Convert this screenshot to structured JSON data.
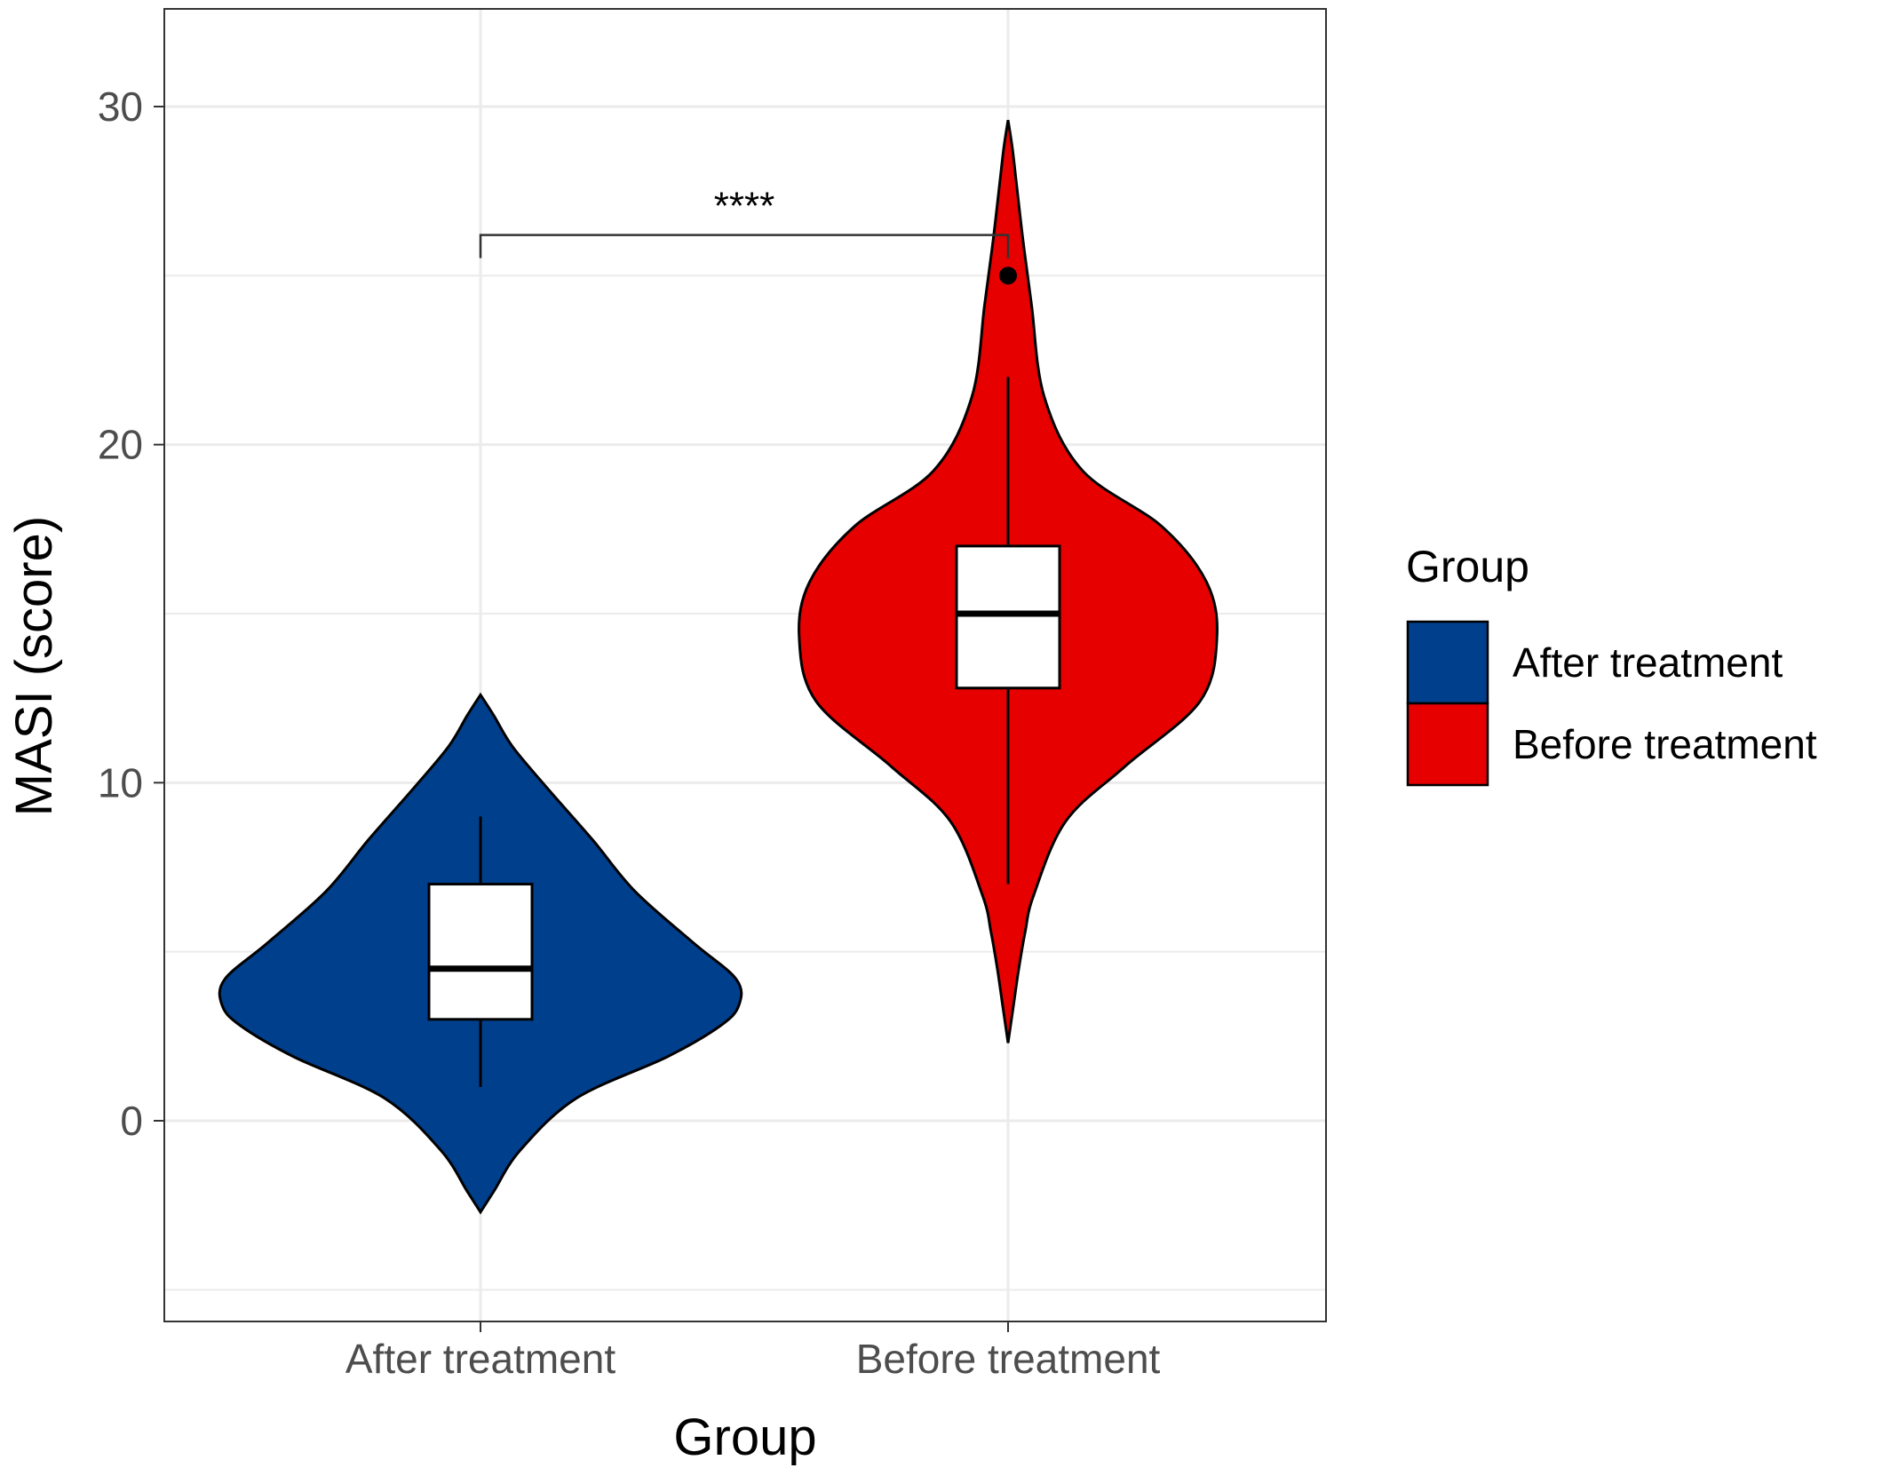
{
  "chart_data": {
    "type": "violin",
    "title": "",
    "xlabel": "Group",
    "ylabel": "MASI (score)",
    "categories": [
      "After treatment",
      "Before treatment"
    ],
    "ylim": [
      -5,
      33
    ],
    "yticks": [
      0,
      10,
      20,
      30
    ],
    "grid": true,
    "legend": {
      "title": "Group",
      "position": "right",
      "entries": [
        "After treatment",
        "Before treatment"
      ]
    },
    "series": [
      {
        "name": "After treatment",
        "color": "#003f8c",
        "violin_range": [
          -2.7,
          12.6
        ],
        "box": {
          "whisker_low": 1.0,
          "q1": 3.0,
          "median": 4.5,
          "q3": 7.0,
          "whisker_high": 9.0
        },
        "outliers": []
      },
      {
        "name": "Before treatment",
        "color": "#e60000",
        "violin_range": [
          2.3,
          29.6
        ],
        "box": {
          "whisker_low": 7.0,
          "q1": 12.8,
          "median": 15.0,
          "q3": 17.0,
          "whisker_high": 22.0
        },
        "outliers": [
          25.0
        ]
      }
    ],
    "annotations": [
      {
        "text": "****",
        "type": "significance-bracket",
        "y": 26.2,
        "between": [
          "After treatment",
          "Before treatment"
        ]
      }
    ]
  }
}
